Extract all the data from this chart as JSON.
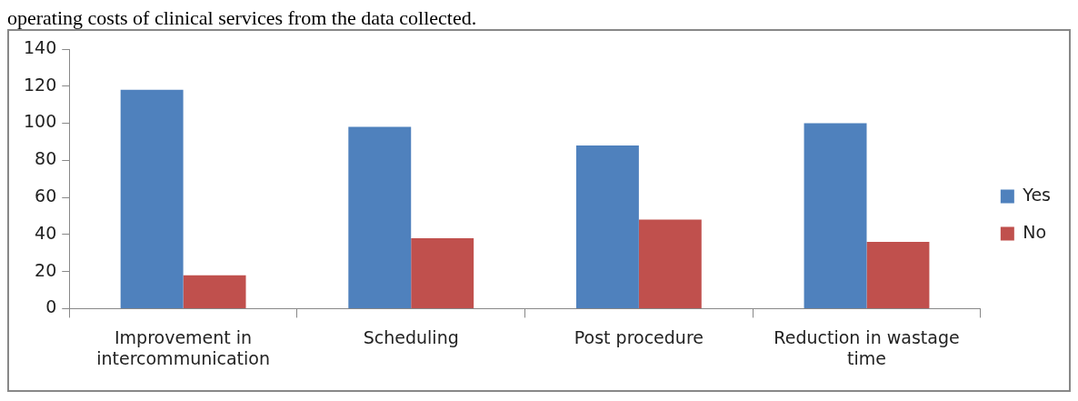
{
  "chart_data": {
    "type": "bar",
    "annotations": [
      "operating costs of clinical services from the data collected."
    ],
    "categories": [
      "Improvement in intercommunication",
      "Scheduling",
      "Post procedure",
      "Reduction in wastage time"
    ],
    "series": [
      {
        "name": "Yes",
        "color": "#4f81bd",
        "values": [
          118,
          98,
          88,
          100
        ]
      },
      {
        "name": "No",
        "color": "#c0504d",
        "values": [
          18,
          38,
          48,
          36
        ]
      }
    ],
    "ylim": [
      0,
      140
    ],
    "yticks": [
      0,
      20,
      40,
      60,
      80,
      100,
      120,
      140
    ],
    "grid": false,
    "legend": "right"
  }
}
